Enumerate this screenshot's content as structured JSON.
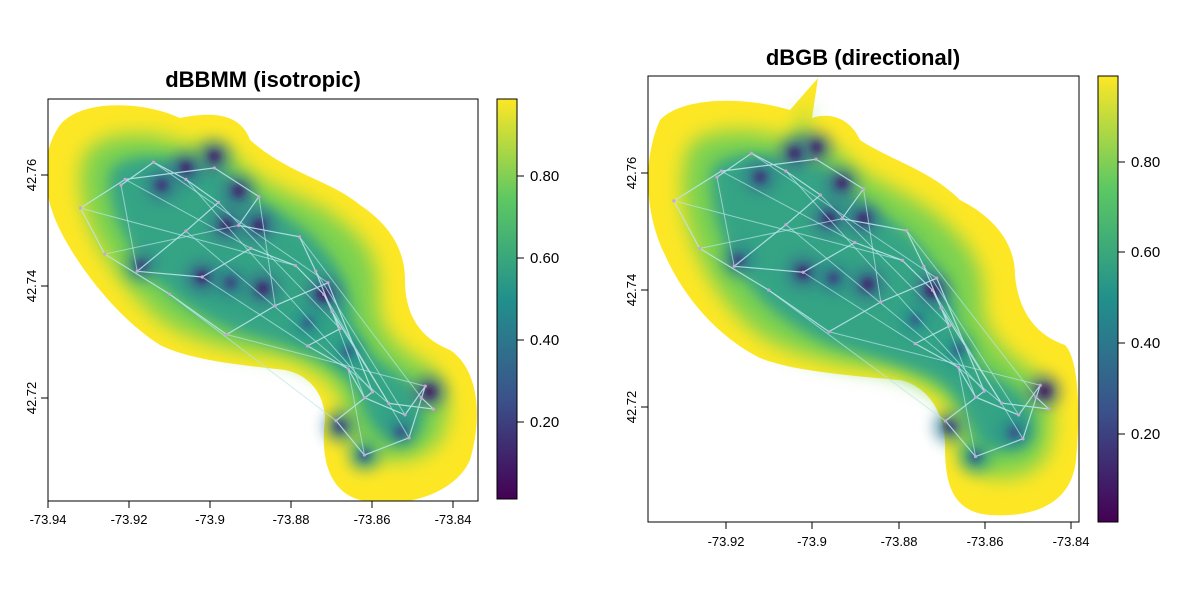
{
  "chart_data": [
    {
      "type": "heatmap",
      "title": "dBBMM (isotropic)",
      "xlabel": "",
      "ylabel": "",
      "xlim": [
        -73.94,
        -73.834
      ],
      "ylim": [
        42.704,
        42.774
      ],
      "x_ticks": [
        -73.94,
        -73.92,
        -73.9,
        -73.88,
        -73.86,
        -73.84
      ],
      "x_tick_labels": [
        "-73.94",
        "-73.92",
        "-73.9",
        "-73.88",
        "-73.86",
        "-73.84"
      ],
      "y_ticks": [
        42.72,
        42.74,
        42.76
      ],
      "y_tick_labels": [
        "42.72",
        "42.74",
        "42.76"
      ],
      "colorbar": {
        "range": [
          0.0,
          1.0
        ],
        "ticks": [
          0.2,
          0.4,
          0.6,
          0.8
        ],
        "tick_labels": [
          "0.20",
          "0.40",
          "0.60",
          "0.80"
        ],
        "palette": [
          "#440154",
          "#3b528b",
          "#21908c",
          "#5dc863",
          "#fde725"
        ]
      },
      "track_points": [
        [
          -73.922,
          42.759
        ],
        [
          -73.914,
          42.763
        ],
        [
          -73.906,
          42.76
        ],
        [
          -73.898,
          42.756
        ],
        [
          -73.906,
          42.751
        ],
        [
          -73.918,
          42.744
        ],
        [
          -73.902,
          42.743
        ],
        [
          -73.89,
          42.748
        ],
        [
          -73.879,
          42.745
        ],
        [
          -73.872,
          42.74
        ],
        [
          -73.868,
          42.734
        ],
        [
          -73.876,
          42.731
        ],
        [
          -73.866,
          42.727
        ],
        [
          -73.862,
          42.722
        ],
        [
          -73.852,
          42.719
        ],
        [
          -73.847,
          42.724
        ],
        [
          -73.851,
          42.715
        ],
        [
          -73.862,
          42.712
        ],
        [
          -73.869,
          42.718
        ],
        [
          -73.86,
          42.723
        ],
        [
          -73.871,
          42.742
        ],
        [
          -73.884,
          42.738
        ],
        [
          -73.896,
          42.733
        ],
        [
          -73.91,
          42.74
        ],
        [
          -73.926,
          42.747
        ],
        [
          -73.932,
          42.755
        ],
        [
          -73.921,
          42.76
        ],
        [
          -73.899,
          42.762
        ],
        [
          -73.888,
          42.757
        ],
        [
          -73.893,
          42.752
        ],
        [
          -73.878,
          42.75
        ],
        [
          -73.874,
          42.744
        ],
        [
          -73.87,
          42.737
        ],
        [
          -73.856,
          42.721
        ],
        [
          -73.845,
          42.72
        ],
        [
          -73.848,
          42.722
        ]
      ],
      "hotspots": [
        [
          -73.872,
          42.74,
          0.05
        ],
        [
          -73.846,
          42.723,
          0.05
        ],
        [
          -73.917,
          42.745,
          0.2
        ],
        [
          -73.899,
          42.764,
          0.1
        ],
        [
          -73.906,
          42.762,
          0.1
        ],
        [
          -73.893,
          42.758,
          0.1
        ],
        [
          -73.896,
          42.752,
          0.1
        ],
        [
          -73.888,
          42.752,
          0.1
        ],
        [
          -73.912,
          42.759,
          0.15
        ],
        [
          -73.902,
          42.743,
          0.1
        ],
        [
          -73.887,
          42.741,
          0.1
        ],
        [
          -73.868,
          42.717,
          0.2
        ],
        [
          -73.853,
          42.716,
          0.25
        ],
        [
          -73.862,
          42.712,
          0.3
        ],
        [
          -73.876,
          42.735,
          0.3
        ],
        [
          -73.866,
          42.73,
          0.3
        ],
        [
          -73.895,
          42.742,
          0.2
        ]
      ]
    },
    {
      "type": "heatmap",
      "title": "dBGB (directional)",
      "xlabel": "",
      "ylabel": "",
      "xlim": [
        -73.938,
        -73.838
      ],
      "ylim": [
        42.701,
        42.776
      ],
      "x_ticks": [
        -73.92,
        -73.9,
        -73.88,
        -73.86,
        -73.84
      ],
      "x_tick_labels": [
        "-73.92",
        "-73.9",
        "-73.88",
        "-73.86",
        "-73.84"
      ],
      "y_ticks": [
        42.72,
        42.74,
        42.76
      ],
      "y_tick_labels": [
        "42.72",
        "42.74",
        "42.76"
      ],
      "colorbar": {
        "range": [
          0.0,
          1.0
        ],
        "ticks": [
          0.2,
          0.4,
          0.6,
          0.8
        ],
        "tick_labels": [
          "0.20",
          "0.40",
          "0.60",
          "0.80"
        ],
        "palette": [
          "#440154",
          "#3b528b",
          "#21908c",
          "#5dc863",
          "#fde725"
        ]
      },
      "track_points": [
        [
          -73.922,
          42.759
        ],
        [
          -73.914,
          42.763
        ],
        [
          -73.906,
          42.76
        ],
        [
          -73.898,
          42.756
        ],
        [
          -73.906,
          42.751
        ],
        [
          -73.918,
          42.744
        ],
        [
          -73.902,
          42.743
        ],
        [
          -73.89,
          42.748
        ],
        [
          -73.879,
          42.745
        ],
        [
          -73.872,
          42.74
        ],
        [
          -73.868,
          42.734
        ],
        [
          -73.876,
          42.731
        ],
        [
          -73.866,
          42.727
        ],
        [
          -73.862,
          42.722
        ],
        [
          -73.852,
          42.719
        ],
        [
          -73.847,
          42.724
        ],
        [
          -73.851,
          42.715
        ],
        [
          -73.862,
          42.712
        ],
        [
          -73.869,
          42.718
        ],
        [
          -73.86,
          42.723
        ],
        [
          -73.871,
          42.742
        ],
        [
          -73.884,
          42.738
        ],
        [
          -73.896,
          42.733
        ],
        [
          -73.91,
          42.74
        ],
        [
          -73.926,
          42.747
        ],
        [
          -73.932,
          42.755
        ],
        [
          -73.921,
          42.76
        ],
        [
          -73.899,
          42.762
        ],
        [
          -73.888,
          42.757
        ],
        [
          -73.893,
          42.752
        ],
        [
          -73.878,
          42.75
        ],
        [
          -73.874,
          42.744
        ],
        [
          -73.87,
          42.737
        ],
        [
          -73.856,
          42.721
        ],
        [
          -73.845,
          42.72
        ],
        [
          -73.848,
          42.722
        ]
      ],
      "hotspots": [
        [
          -73.872,
          42.74,
          0.05
        ],
        [
          -73.846,
          42.723,
          0.05
        ],
        [
          -73.917,
          42.745,
          0.2
        ],
        [
          -73.899,
          42.764,
          0.1
        ],
        [
          -73.904,
          42.763,
          0.1
        ],
        [
          -73.893,
          42.758,
          0.1
        ],
        [
          -73.896,
          42.752,
          0.1
        ],
        [
          -73.888,
          42.752,
          0.1
        ],
        [
          -73.912,
          42.759,
          0.15
        ],
        [
          -73.902,
          42.743,
          0.1
        ],
        [
          -73.887,
          42.741,
          0.1
        ],
        [
          -73.868,
          42.717,
          0.2
        ],
        [
          -73.853,
          42.716,
          0.25
        ],
        [
          -73.862,
          42.712,
          0.3
        ],
        [
          -73.876,
          42.735,
          0.3
        ],
        [
          -73.866,
          42.73,
          0.3
        ],
        [
          -73.895,
          42.742,
          0.2
        ]
      ]
    }
  ]
}
